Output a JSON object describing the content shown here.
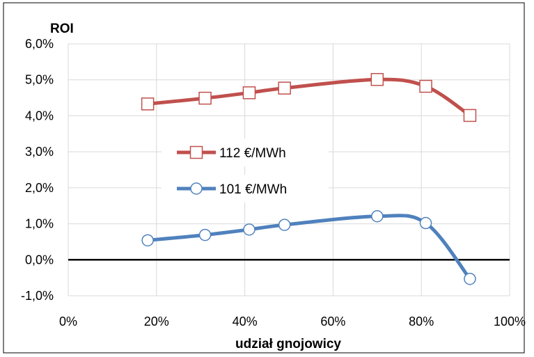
{
  "chart_data": {
    "type": "line",
    "title": "",
    "xlabel": "udział gnojowicy",
    "ylabel": "ROI",
    "xlim": [
      0,
      100
    ],
    "ylim": [
      -1,
      6
    ],
    "x_ticks": [
      "0%",
      "20%",
      "40%",
      "60%",
      "80%",
      "100%"
    ],
    "y_ticks": [
      "-1,0%",
      "0,0%",
      "1,0%",
      "2,0%",
      "3,0%",
      "4,0%",
      "5,0%",
      "6,0%"
    ],
    "grid": true,
    "legend_position": "center-left",
    "series": [
      {
        "name": "112 €/MWh",
        "color": "#c0504d",
        "marker": "square",
        "x": [
          18,
          31,
          41,
          49,
          70,
          81,
          91
        ],
        "y": [
          4.33,
          4.49,
          4.64,
          4.77,
          5.01,
          4.82,
          4.01
        ]
      },
      {
        "name": "101 €/MWh",
        "color": "#4f81bd",
        "marker": "circle",
        "x": [
          18,
          31,
          41,
          49,
          70,
          81,
          91
        ],
        "y": [
          0.54,
          0.69,
          0.84,
          0.97,
          1.21,
          1.02,
          -0.53
        ]
      }
    ]
  }
}
